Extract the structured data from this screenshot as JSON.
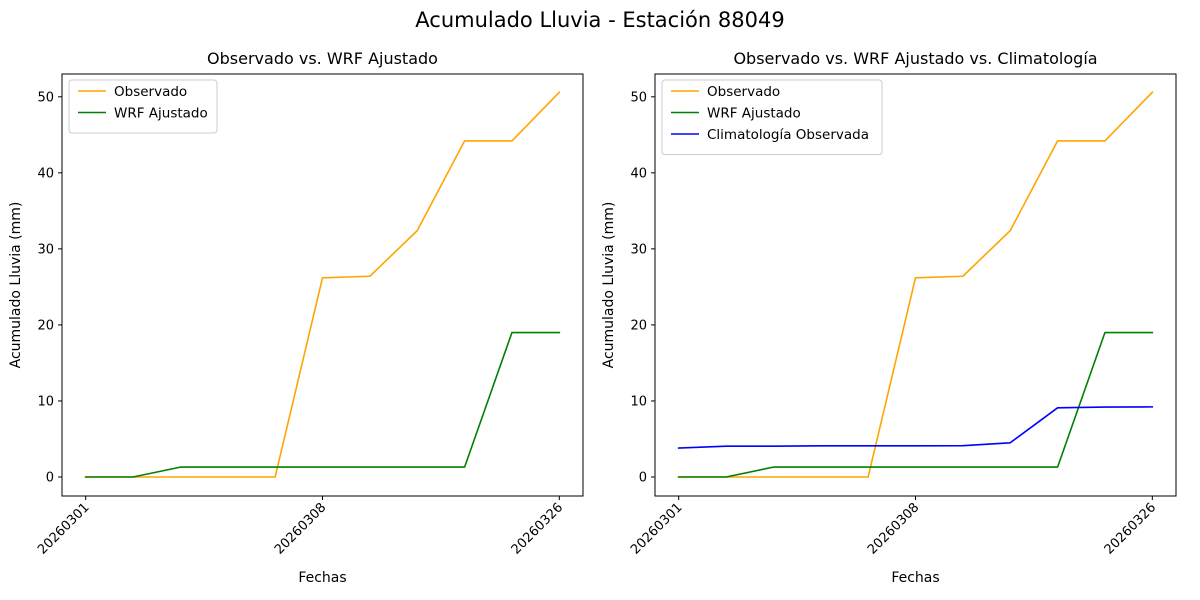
{
  "figure": {
    "suptitle": "Acumulado Lluvia - Estación 88049"
  },
  "colors": {
    "observado": "#ffa500",
    "wrf": "#008000",
    "climatologia": "#0000ff"
  },
  "chart_data": [
    {
      "type": "line",
      "title": "Observado vs. WRF Ajustado",
      "xlabel": "Fechas",
      "ylabel": "Acumulado Lluvia (mm)",
      "x": [
        0,
        1,
        2,
        3,
        4,
        5,
        6,
        7,
        8,
        9,
        10
      ],
      "xticks": [
        {
          "pos": 0,
          "label": "20260301"
        },
        {
          "pos": 5,
          "label": "20260308"
        },
        {
          "pos": 10,
          "label": "20260326"
        }
      ],
      "xlim": [
        -0.5,
        10.5
      ],
      "ylim": [
        -2.5,
        53
      ],
      "yticks": [
        0,
        10,
        20,
        30,
        40,
        50
      ],
      "legend": "upper-left",
      "grid": false,
      "series": [
        {
          "name": "Observado",
          "color": "#ffa500",
          "values": [
            0,
            0,
            0,
            0,
            0,
            26.2,
            26.4,
            32.4,
            44.2,
            44.2,
            50.6
          ]
        },
        {
          "name": "WRF Ajustado",
          "color": "#008000",
          "values": [
            0,
            0,
            1.3,
            1.3,
            1.3,
            1.3,
            1.3,
            1.3,
            1.3,
            19.0,
            19.0
          ]
        }
      ]
    },
    {
      "type": "line",
      "title": "Observado vs. WRF Ajustado vs. Climatología",
      "xlabel": "Fechas",
      "ylabel": "Acumulado Lluvia (mm)",
      "x": [
        0,
        1,
        2,
        3,
        4,
        5,
        6,
        7,
        8,
        9,
        10
      ],
      "xticks": [
        {
          "pos": 0,
          "label": "20260301"
        },
        {
          "pos": 5,
          "label": "20260308"
        },
        {
          "pos": 10,
          "label": "20260326"
        }
      ],
      "xlim": [
        -0.5,
        10.5
      ],
      "ylim": [
        -2.5,
        53
      ],
      "yticks": [
        0,
        10,
        20,
        30,
        40,
        50
      ],
      "legend": "upper-left",
      "grid": false,
      "series": [
        {
          "name": "Observado",
          "color": "#ffa500",
          "values": [
            0,
            0,
            0,
            0,
            0,
            26.2,
            26.4,
            32.4,
            44.2,
            44.2,
            50.6
          ]
        },
        {
          "name": "WRF Ajustado",
          "color": "#008000",
          "values": [
            0,
            0,
            1.3,
            1.3,
            1.3,
            1.3,
            1.3,
            1.3,
            1.3,
            19.0,
            19.0
          ]
        },
        {
          "name": "Climatología Observada",
          "color": "#0000ff",
          "values": [
            3.8,
            4.05,
            4.05,
            4.1,
            4.1,
            4.1,
            4.12,
            4.5,
            9.1,
            9.2,
            9.22
          ]
        }
      ]
    }
  ]
}
